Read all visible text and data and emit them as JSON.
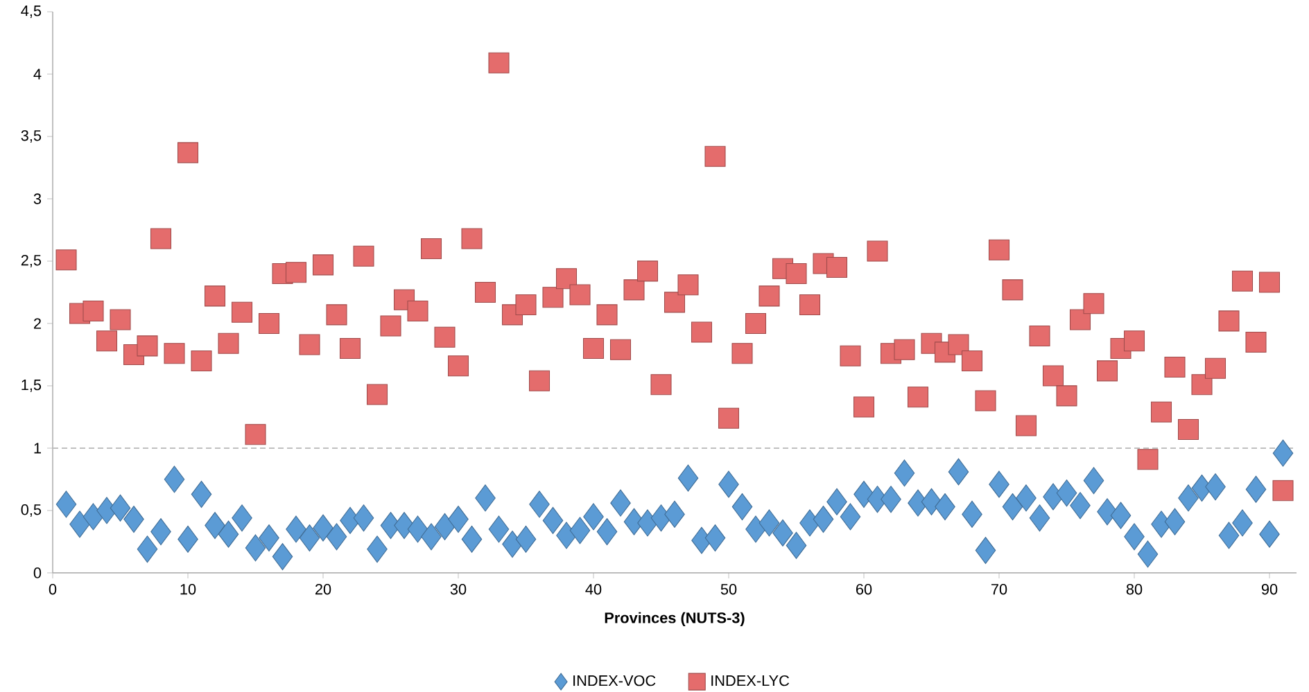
{
  "chart_data": {
    "type": "scatter",
    "xlabel": "Provinces (NUTS-3)",
    "x": [
      1,
      2,
      3,
      4,
      5,
      6,
      7,
      8,
      9,
      10,
      11,
      12,
      13,
      14,
      15,
      16,
      17,
      18,
      19,
      20,
      21,
      22,
      23,
      24,
      25,
      26,
      27,
      28,
      29,
      30,
      31,
      32,
      33,
      34,
      35,
      36,
      37,
      38,
      39,
      40,
      41,
      42,
      43,
      44,
      45,
      46,
      47,
      48,
      49,
      50,
      51,
      52,
      53,
      54,
      55,
      56,
      57,
      58,
      59,
      60,
      61,
      62,
      63,
      64,
      65,
      66,
      67,
      68,
      69,
      70,
      71,
      72,
      73,
      74,
      75,
      76,
      77,
      78,
      79,
      80,
      81,
      82,
      83,
      84,
      85,
      86,
      87,
      88,
      89,
      90,
      91
    ],
    "series": [
      {
        "name": "INDEX-VOC",
        "color": "#5b9bd5",
        "marker": "diamond",
        "values": [
          0.55,
          0.39,
          0.45,
          0.5,
          0.52,
          0.43,
          0.19,
          0.33,
          0.75,
          0.27,
          0.63,
          0.38,
          0.31,
          0.44,
          0.2,
          0.28,
          0.13,
          0.35,
          0.28,
          0.36,
          0.29,
          0.42,
          0.44,
          0.19,
          0.38,
          0.38,
          0.35,
          0.29,
          0.37,
          0.43,
          0.27,
          0.6,
          0.35,
          0.23,
          0.27,
          0.55,
          0.42,
          0.3,
          0.34,
          0.45,
          0.33,
          0.56,
          0.41,
          0.4,
          0.44,
          0.47,
          0.76,
          0.26,
          0.28,
          0.71,
          0.53,
          0.35,
          0.4,
          0.32,
          0.22,
          0.4,
          0.43,
          0.57,
          0.45,
          0.63,
          0.59,
          0.59,
          0.8,
          0.56,
          0.57,
          0.53,
          0.81,
          0.47,
          0.18,
          0.71,
          0.53,
          0.6,
          0.44,
          0.61,
          0.64,
          0.54,
          0.74,
          0.49,
          0.46,
          0.29,
          0.15,
          0.39,
          0.41,
          0.6,
          0.68,
          0.69,
          0.3,
          0.4,
          0.67,
          0.31,
          0.96
        ]
      },
      {
        "name": "INDEX-LYC",
        "color": "#e46c6c",
        "marker": "square",
        "values": [
          2.51,
          2.08,
          2.1,
          1.86,
          2.03,
          1.75,
          1.82,
          2.68,
          1.76,
          3.37,
          1.7,
          2.22,
          1.84,
          2.09,
          1.11,
          2.0,
          2.4,
          2.41,
          1.83,
          2.47,
          2.07,
          1.8,
          2.54,
          1.43,
          1.98,
          2.19,
          2.1,
          2.6,
          1.89,
          1.66,
          2.68,
          2.25,
          4.09,
          2.07,
          2.15,
          1.54,
          2.21,
          2.36,
          2.23,
          1.8,
          2.07,
          1.79,
          2.27,
          2.42,
          1.51,
          2.17,
          2.31,
          1.93,
          3.34,
          1.24,
          1.76,
          2.0,
          2.22,
          2.44,
          2.4,
          2.15,
          2.48,
          2.45,
          1.74,
          1.33,
          2.58,
          1.76,
          1.79,
          1.41,
          1.84,
          1.77,
          1.83,
          1.7,
          1.38,
          2.59,
          2.27,
          1.18,
          1.9,
          1.58,
          1.42,
          2.03,
          2.16,
          1.62,
          1.8,
          1.86,
          0.91,
          1.29,
          1.65,
          1.15,
          1.51,
          1.64,
          2.02,
          2.34,
          1.85,
          2.33,
          0.66
        ]
      }
    ],
    "xlim": [
      0,
      92
    ],
    "xticks": [
      0,
      10,
      20,
      30,
      40,
      50,
      60,
      70,
      80,
      90
    ],
    "ylim": [
      0,
      4.5
    ],
    "yticks": [
      0,
      {
        "value": 0.5,
        "label": "0,5"
      },
      1,
      {
        "value": 1.5,
        "label": "1,5"
      },
      2,
      {
        "value": 2.5,
        "label": "2,5"
      },
      3,
      {
        "value": 3.5,
        "label": "3,5"
      },
      4,
      {
        "value": 4.5,
        "label": "4,5"
      }
    ],
    "ref_lines": [
      {
        "axis": "y",
        "value": 1,
        "color": "#bfbfbf",
        "line_style": "dashed"
      }
    ],
    "grid": false,
    "legend": "bottom"
  }
}
